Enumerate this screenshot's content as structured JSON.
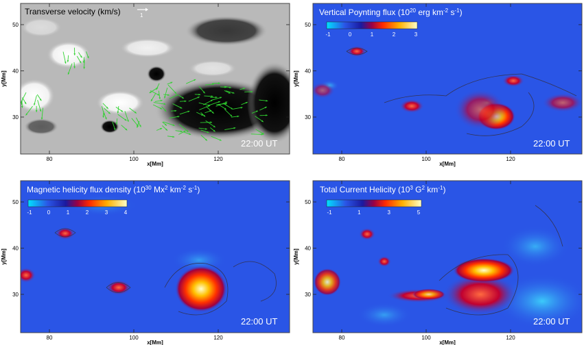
{
  "axis": {
    "xlabel": "x[Mm]",
    "ylabel": "y[Mm]",
    "x_ticks": [
      "80",
      "100",
      "120"
    ],
    "y_ticks": [
      "30",
      "40",
      "50"
    ]
  },
  "time_label": "22:00 UT",
  "panels": [
    {
      "id": "transverse-velocity",
      "title": "Transverse velocity (km/s)",
      "vector_scale": "1",
      "colors": {
        "background": "#b9b9b9",
        "vector": "#2fd12f"
      }
    },
    {
      "id": "poynting-flux",
      "title_main": "Vertical Poynting flux (10",
      "title_sup1": "20",
      "title_mid": " erg km",
      "title_sup2": "-2",
      "title_end": " s",
      "title_sup3": "-1",
      "title_close": ")",
      "colorbar_ticks": [
        "-1",
        "0",
        "1",
        "2",
        "3"
      ]
    },
    {
      "id": "helicity-flux",
      "title_main": "Magnetic helicity flux density (10",
      "title_sup1": "30",
      "title_mid": " Mx",
      "title_sup2": "2",
      "title_mid2": " km",
      "title_sup3": "-2",
      "title_end": " s",
      "title_sup4": "-1",
      "title_close": ")",
      "colorbar_ticks": [
        "-1",
        "0",
        "1",
        "2",
        "3",
        "4"
      ]
    },
    {
      "id": "current-helicity",
      "title_main": "Total Current Helicity (10",
      "title_sup1": "3",
      "title_mid": " G",
      "title_sup2": "2",
      "title_end": " km",
      "title_sup3": "-1",
      "title_close": ")",
      "colorbar_ticks": [
        "-1",
        "1",
        "3",
        "5"
      ]
    }
  ],
  "colors": {
    "map_blue": "#2a55e6",
    "frame": "#444444"
  }
}
